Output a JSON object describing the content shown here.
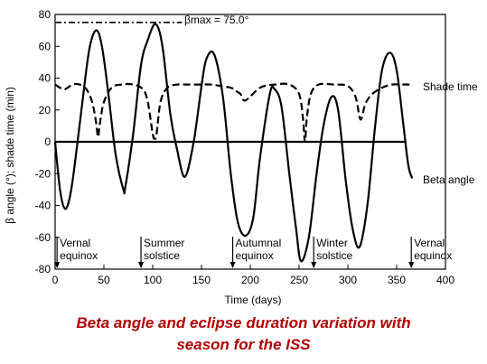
{
  "caption": {
    "line1": "Beta angle and eclipse duration variation with",
    "line2": "season for the ISS"
  },
  "chart_data": {
    "type": "line",
    "xlabel": "Time (days)",
    "ylabel": "β angle (°); shade time (min)",
    "xlim": [
      0,
      400
    ],
    "ylim": [
      -80,
      80
    ],
    "x_ticks": [
      0,
      50,
      100,
      150,
      200,
      250,
      300,
      350,
      400
    ],
    "y_ticks": [
      -80,
      -60,
      -40,
      -20,
      0,
      20,
      40,
      60,
      80
    ],
    "grid": false,
    "beta_max": {
      "label": "βmax = 75.0°",
      "value": 75.0
    },
    "series": [
      {
        "name": "Beta angle",
        "style": "solid",
        "x": [
          0,
          5,
          10,
          15,
          20,
          28,
          35,
          42,
          48,
          55,
          62,
          70,
          72,
          80,
          88,
          95,
          103,
          110,
          118,
          125,
          133,
          142,
          150,
          155,
          163,
          172,
          180,
          187,
          195,
          203,
          210,
          220,
          225,
          232,
          240,
          247,
          252,
          260,
          268,
          275,
          283,
          290,
          298,
          305,
          312,
          320,
          328,
          335,
          343,
          350,
          357,
          362,
          366
        ],
        "y": [
          0,
          -30,
          -42,
          -35,
          -15,
          25,
          58,
          70,
          60,
          28,
          -8,
          -30,
          -28,
          5,
          48,
          64,
          74,
          60,
          18,
          -5,
          -22,
          0,
          35,
          52,
          55,
          28,
          -20,
          -50,
          -59,
          -48,
          -10,
          30,
          33,
          22,
          -20,
          -55,
          -75,
          -60,
          -20,
          10,
          28,
          20,
          -25,
          -55,
          -66,
          -40,
          10,
          45,
          56,
          45,
          10,
          -15,
          -23
        ]
      },
      {
        "name": "Shade time",
        "style": "dashed",
        "x": [
          0,
          5,
          10,
          18,
          25,
          32,
          38,
          42,
          44,
          46,
          50,
          58,
          68,
          80,
          90,
          95,
          100,
          102,
          104,
          108,
          115,
          125,
          135,
          150,
          160,
          170,
          180,
          185,
          190,
          195,
          210,
          225,
          240,
          250,
          254,
          256,
          258,
          262,
          270,
          285,
          300,
          308,
          313,
          318,
          325,
          335,
          345,
          355,
          362,
          366
        ],
        "y": [
          36,
          34,
          33,
          36,
          36,
          33,
          25,
          12,
          3,
          12,
          25,
          34,
          36,
          36,
          33,
          25,
          5,
          2,
          5,
          25,
          34,
          36,
          36,
          36,
          36,
          35,
          34,
          32,
          30,
          26,
          34,
          36,
          36,
          30,
          15,
          0,
          15,
          30,
          36,
          36,
          35,
          28,
          14,
          24,
          30,
          34,
          36,
          36,
          36,
          35
        ]
      }
    ],
    "annotations": [
      {
        "text": [
          "Vernal",
          "equinox"
        ],
        "x": 2
      },
      {
        "text": [
          "Summer",
          "solstice"
        ],
        "x": 88
      },
      {
        "text": [
          "Autumnal",
          "equinox"
        ],
        "x": 182
      },
      {
        "text": [
          "Winter",
          "solstice"
        ],
        "x": 265
      },
      {
        "text": [
          "Vernal",
          "equinox"
        ],
        "x": 365
      }
    ],
    "series_labels": {
      "shade": "Shade time",
      "beta": "Beta angle"
    }
  }
}
